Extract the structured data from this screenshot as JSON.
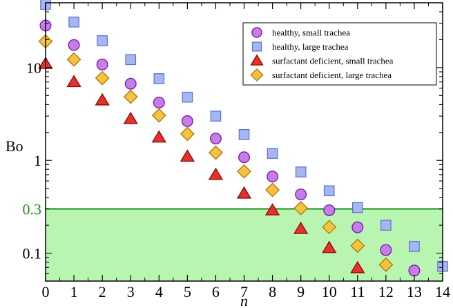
{
  "chart_data": {
    "type": "scatter",
    "xlabel": "n",
    "ylabel": "Bo",
    "xlim": [
      0,
      14
    ],
    "ylim": [
      0.05,
      50
    ],
    "yscale": "log",
    "grid": false,
    "legend_position": "top-right",
    "x_ticks": [
      "0",
      "1",
      "2",
      "3",
      "4",
      "5",
      "6",
      "7",
      "8",
      "9",
      "10",
      "11",
      "12",
      "13",
      "14"
    ],
    "y_ticks": [
      {
        "value": 0.1,
        "label": "0.1"
      },
      {
        "value": 1,
        "label": "1"
      },
      {
        "value": 10,
        "label": "10"
      }
    ],
    "threshold": {
      "value": 0.3,
      "label": "0.3",
      "line_color": "#1a8a1a",
      "fill_color": "#b8f5b0",
      "label_color": "#1a8a1a"
    },
    "series": [
      {
        "name": "healthy, small trachea",
        "marker": "circle",
        "fill": "#c77de8",
        "stroke": "#7a1fa8",
        "x": [
          0,
          1,
          2,
          3,
          4,
          5,
          6,
          7,
          8,
          9,
          10,
          11,
          12,
          13
        ],
        "y": [
          28.4,
          17.5,
          10.8,
          6.7,
          4.2,
          2.65,
          1.72,
          1.08,
          0.67,
          0.43,
          0.29,
          0.19,
          0.108,
          0.065
        ]
      },
      {
        "name": "healthy, large trachea",
        "marker": "square",
        "fill": "#a6b6f2",
        "stroke": "#5a6fd0",
        "x": [
          0,
          1,
          2,
          3,
          4,
          5,
          6,
          7,
          8,
          9,
          10,
          11,
          12,
          13,
          14
        ],
        "y": [
          48,
          31,
          19.5,
          12.2,
          7.6,
          4.8,
          3.0,
          1.9,
          1.19,
          0.75,
          0.47,
          0.31,
          0.2,
          0.118,
          0.072
        ]
      },
      {
        "name": "surfactant deficient, small trachea",
        "marker": "triangle",
        "fill": "#e8302a",
        "stroke": "#8a0f0a",
        "x": [
          0,
          1,
          2,
          3,
          4,
          5,
          6,
          7,
          8,
          9,
          10,
          11
        ],
        "y": [
          11,
          7,
          4.45,
          2.8,
          1.77,
          1.1,
          0.7,
          0.44,
          0.29,
          0.183,
          0.114,
          0.069
        ]
      },
      {
        "name": "surfactant deficient, large trachea",
        "marker": "diamond",
        "fill": "#f6c242",
        "stroke": "#b07d08",
        "x": [
          0,
          1,
          2,
          3,
          4,
          5,
          6,
          7,
          8,
          9,
          10,
          11,
          12
        ],
        "y": [
          19.2,
          12.2,
          7.7,
          4.85,
          3.05,
          1.93,
          1.21,
          0.76,
          0.48,
          0.305,
          0.191,
          0.12,
          0.075
        ]
      }
    ]
  }
}
